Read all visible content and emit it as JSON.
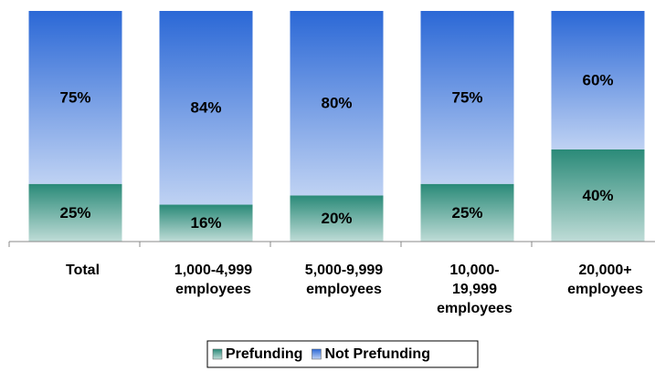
{
  "chart_data": {
    "type": "stacked_bar",
    "categories": [
      [
        "Total"
      ],
      [
        "1,000-4,999",
        "employees"
      ],
      [
        "5,000-9,999",
        "employees"
      ],
      [
        "10,000-",
        "19,999",
        "employees"
      ],
      [
        "20,000+",
        "employees"
      ]
    ],
    "ylim": [
      0,
      100
    ],
    "series": [
      {
        "name": "Prefunding",
        "color": "#2a8a78",
        "values": [
          25,
          16,
          20,
          25,
          40
        ],
        "value_labels": [
          "25%",
          "16%",
          "20%",
          "25%",
          "40%"
        ]
      },
      {
        "name": "Not Prefunding",
        "color": "#2b68d6",
        "values": [
          75,
          84,
          80,
          75,
          60
        ],
        "value_labels": [
          "75%",
          "84%",
          "80%",
          "75%",
          "60%"
        ]
      }
    ],
    "legend": "bottom"
  }
}
